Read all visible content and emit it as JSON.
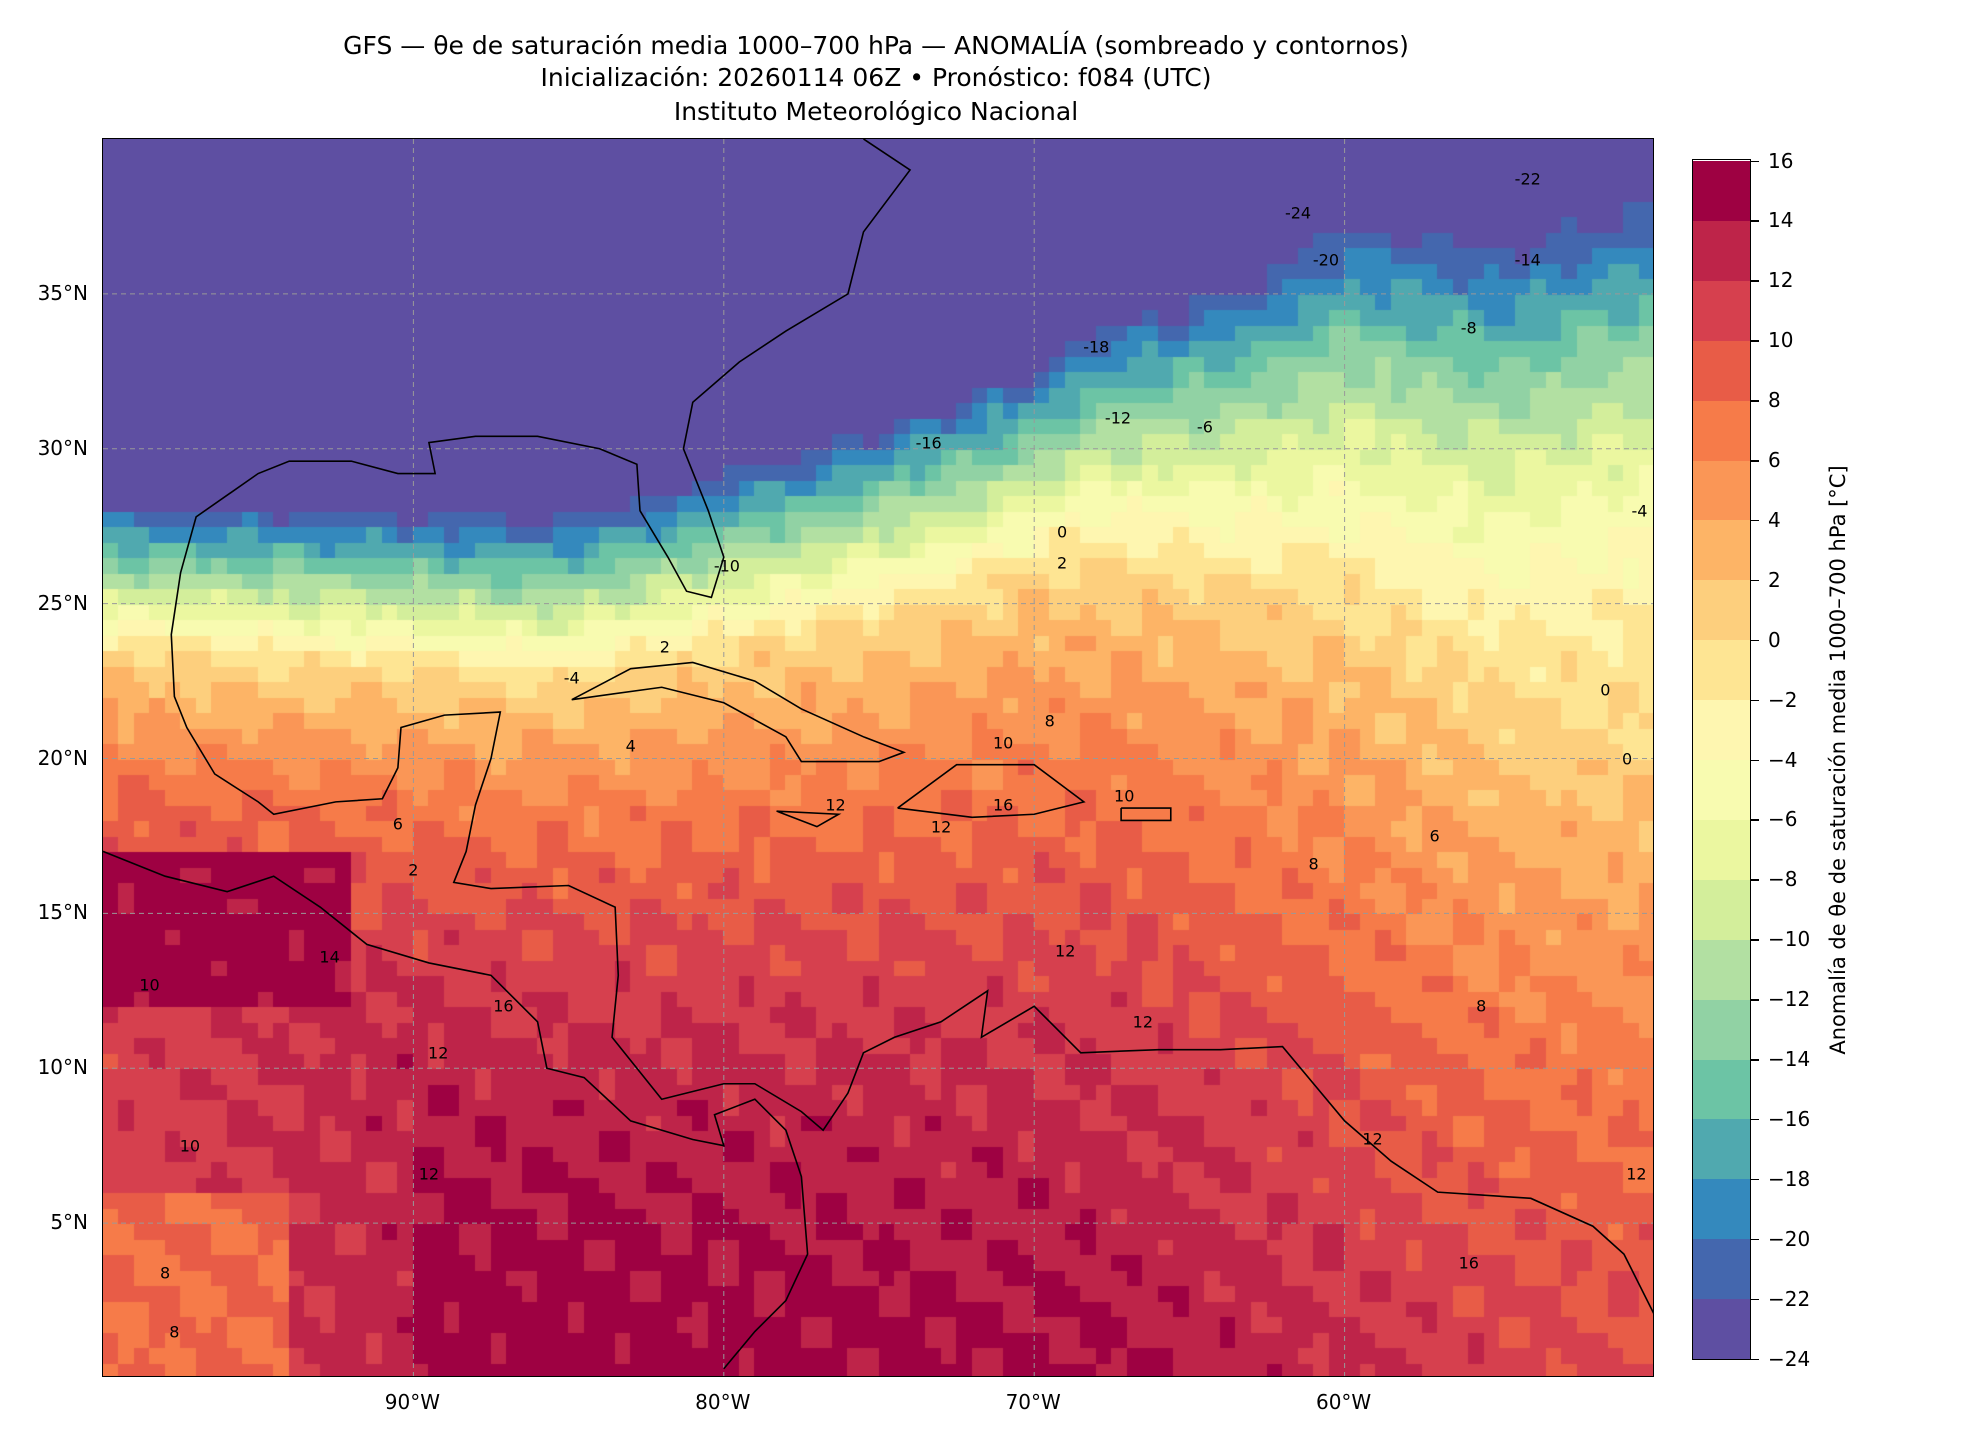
{
  "title": {
    "line1": "GFS — θe de saturación media 1000–700 hPa — ANOMALÍA (sombreado y contornos)",
    "line2": "Inicialización: 20260114 06Z   •   Pronóstico: f084 (UTC)",
    "line3": "Instituto Meteorológico Nacional"
  },
  "chart_data": {
    "type": "heatmap",
    "projection": "lat-lon",
    "extent": {
      "lon": [
        -100,
        -50
      ],
      "lat": [
        0,
        40
      ]
    },
    "grid": true,
    "x_ticks": [
      {
        "value": -90,
        "label": "90°W"
      },
      {
        "value": -80,
        "label": "80°W"
      },
      {
        "value": -70,
        "label": "70°W"
      },
      {
        "value": -60,
        "label": "60°W"
      }
    ],
    "y_ticks": [
      {
        "value": 35,
        "label": "35°N"
      },
      {
        "value": 30,
        "label": "30°N"
      },
      {
        "value": 25,
        "label": "25°N"
      },
      {
        "value": 20,
        "label": "20°N"
      },
      {
        "value": 15,
        "label": "15°N"
      },
      {
        "value": 10,
        "label": "10°N"
      },
      {
        "value": 5,
        "label": "5°N"
      }
    ],
    "colorbar": {
      "label": "Anomalía de θe de saturación media 1000–700 hPa [°C]",
      "range": [
        -24,
        16
      ],
      "step": 2,
      "tick_labels": [
        "16",
        "14",
        "12",
        "10",
        "8",
        "6",
        "4",
        "2",
        "0",
        "−2",
        "−4",
        "−6",
        "−8",
        "−10",
        "−12",
        "−14",
        "−16",
        "−18",
        "−20",
        "−22",
        "−24"
      ],
      "colors": [
        "#5e4fa2",
        "#4467ae",
        "#3489bd",
        "#50a9af",
        "#6cc4a5",
        "#91d2a4",
        "#b2e0a2",
        "#d3ee9b",
        "#ebf7a0",
        "#f8fbb0",
        "#fef6b0",
        "#fee593",
        "#fdcf7d",
        "#fdb466",
        "#fa9656",
        "#f67b49",
        "#e85c47",
        "#d6404e",
        "#be2449",
        "#9e0142"
      ]
    },
    "contour_labels": [
      {
        "text": "-24",
        "lon": -61.5,
        "lat": 37.6
      },
      {
        "text": "-22",
        "lon": -54.1,
        "lat": 38.7
      },
      {
        "text": "-20",
        "lon": -60.6,
        "lat": 36.1
      },
      {
        "text": "-14",
        "lon": -54.1,
        "lat": 36.1
      },
      {
        "text": "-18",
        "lon": -68.0,
        "lat": 33.3
      },
      {
        "text": "-8",
        "lon": -56.0,
        "lat": 33.9
      },
      {
        "text": "-16",
        "lon": -73.4,
        "lat": 30.2
      },
      {
        "text": "-12",
        "lon": -67.3,
        "lat": 31.0
      },
      {
        "text": "-6",
        "lon": -64.5,
        "lat": 30.7
      },
      {
        "text": "-4",
        "lon": -50.5,
        "lat": 28.0
      },
      {
        "text": "0",
        "lon": -69.1,
        "lat": 27.3
      },
      {
        "text": "2",
        "lon": -69.1,
        "lat": 26.3
      },
      {
        "text": "-10",
        "lon": -79.9,
        "lat": 26.2
      },
      {
        "text": "2",
        "lon": -81.9,
        "lat": 23.6
      },
      {
        "text": "-4",
        "lon": -84.9,
        "lat": 22.6
      },
      {
        "text": "4",
        "lon": -83.0,
        "lat": 20.4
      },
      {
        "text": "0",
        "lon": -51.6,
        "lat": 22.2
      },
      {
        "text": "0",
        "lon": -50.9,
        "lat": 20.0
      },
      {
        "text": "8",
        "lon": -69.5,
        "lat": 21.2
      },
      {
        "text": "10",
        "lon": -71.0,
        "lat": 20.5
      },
      {
        "text": "12",
        "lon": -76.4,
        "lat": 18.5
      },
      {
        "text": "16",
        "lon": -71.0,
        "lat": 18.5
      },
      {
        "text": "12",
        "lon": -73.0,
        "lat": 17.8
      },
      {
        "text": "10",
        "lon": -67.1,
        "lat": 18.8
      },
      {
        "text": "6",
        "lon": -90.5,
        "lat": 17.9
      },
      {
        "text": "2",
        "lon": -90.0,
        "lat": 16.4
      },
      {
        "text": "6",
        "lon": -57.1,
        "lat": 17.5
      },
      {
        "text": "8",
        "lon": -61.0,
        "lat": 16.6
      },
      {
        "text": "14",
        "lon": -92.7,
        "lat": 13.6
      },
      {
        "text": "10",
        "lon": -98.5,
        "lat": 12.7
      },
      {
        "text": "16",
        "lon": -87.1,
        "lat": 12.0
      },
      {
        "text": "12",
        "lon": -69.0,
        "lat": 13.8
      },
      {
        "text": "12",
        "lon": -66.5,
        "lat": 11.5
      },
      {
        "text": "8",
        "lon": -55.6,
        "lat": 12.0
      },
      {
        "text": "12",
        "lon": -89.2,
        "lat": 10.5
      },
      {
        "text": "10",
        "lon": -97.2,
        "lat": 7.5
      },
      {
        "text": "12",
        "lon": -89.5,
        "lat": 6.6
      },
      {
        "text": "12",
        "lon": -59.1,
        "lat": 7.7
      },
      {
        "text": "12",
        "lon": -50.6,
        "lat": 6.6
      },
      {
        "text": "16",
        "lon": -56.0,
        "lat": 3.7
      },
      {
        "text": "8",
        "lon": -98.0,
        "lat": 3.4
      },
      {
        "text": "8",
        "lon": -97.7,
        "lat": 1.5
      }
    ]
  }
}
